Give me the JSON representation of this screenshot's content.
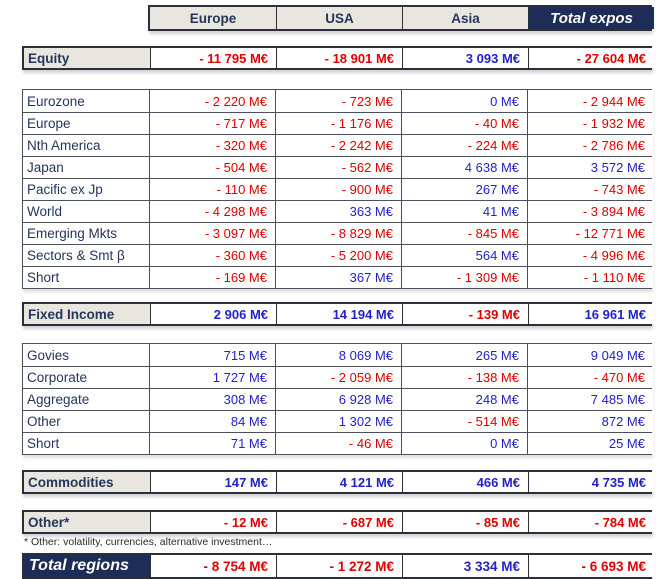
{
  "columns": [
    "Europe",
    "USA",
    "Asia",
    "Total expos"
  ],
  "sections": [
    {
      "kind": "section",
      "name": "equity",
      "label": "Equity",
      "values": [
        "- 11 795 M€",
        "- 18 901 M€",
        "3 093 M€",
        "- 27 604 M€"
      ]
    },
    {
      "kind": "subtable",
      "name": "equity-breakdown",
      "rows": [
        {
          "label": "Eurozone",
          "values": [
            "- 2 220 M€",
            "- 723 M€",
            "0 M€",
            "- 2 944 M€"
          ]
        },
        {
          "label": "Europe",
          "values": [
            "- 717 M€",
            "- 1 176 M€",
            "- 40 M€",
            "- 1 932 M€"
          ]
        },
        {
          "label": "Nth America",
          "values": [
            "- 320 M€",
            "- 2 242 M€",
            "- 224 M€",
            "- 2 786 M€"
          ]
        },
        {
          "label": "Japan",
          "values": [
            "- 504 M€",
            "- 562 M€",
            "4 638 M€",
            "3 572 M€"
          ]
        },
        {
          "label": "Pacific ex Jp",
          "values": [
            "- 110 M€",
            "- 900 M€",
            "267 M€",
            "- 743 M€"
          ]
        },
        {
          "label": "World",
          "values": [
            "- 4 298 M€",
            "363 M€",
            "41 M€",
            "- 3 894 M€"
          ]
        },
        {
          "label": "Emerging Mkts",
          "values": [
            "- 3 097 M€",
            "- 8 829 M€",
            "- 845 M€",
            "- 12 771 M€"
          ]
        },
        {
          "label": "Sectors & Smt β",
          "values": [
            "- 360 M€",
            "- 5 200 M€",
            "564 M€",
            "- 4 996 M€"
          ]
        },
        {
          "label": "Short",
          "values": [
            "- 169 M€",
            "367 M€",
            "- 1 309 M€",
            "- 1 110 M€"
          ]
        }
      ]
    },
    {
      "kind": "section",
      "name": "fixed-income",
      "label": "Fixed Income",
      "values": [
        "2 906 M€",
        "14 194 M€",
        "- 139 M€",
        "16 961 M€"
      ]
    },
    {
      "kind": "subtable",
      "name": "fixed-income-breakdown",
      "rows": [
        {
          "label": "Govies",
          "values": [
            "715 M€",
            "8 069 M€",
            "265 M€",
            "9 049 M€"
          ]
        },
        {
          "label": "Corporate",
          "values": [
            "1 727 M€",
            "- 2 059 M€",
            "- 138 M€",
            "- 470 M€"
          ]
        },
        {
          "label": "Aggregate",
          "values": [
            "308 M€",
            "6 928 M€",
            "248 M€",
            "7 485 M€"
          ]
        },
        {
          "label": "Other",
          "values": [
            "84 M€",
            "1 302 M€",
            "- 514 M€",
            "872 M€"
          ]
        },
        {
          "label": "Short",
          "values": [
            "71 M€",
            "- 46 M€",
            "0 M€",
            "25 M€"
          ]
        }
      ]
    },
    {
      "kind": "section",
      "name": "commodities",
      "label": "Commodities",
      "values": [
        "147 M€",
        "4 121 M€",
        "466 M€",
        "4 735 M€"
      ]
    },
    {
      "kind": "section",
      "name": "other",
      "label": "Other*",
      "values": [
        "- 12 M€",
        "- 687 M€",
        "- 85 M€",
        "- 784 M€"
      ]
    }
  ],
  "footnote": "* Other: volatility, currencies, alternative investment…",
  "total_row": {
    "label": "Total regions",
    "values": [
      "- 8 754 M€",
      "- 1 272 M€",
      "3 334 M€",
      "- 6 693 M€"
    ]
  },
  "colors": {
    "negative": "#E00000",
    "positive": "#2222CC",
    "navy_bg": "#1E2D58",
    "beige_bg": "#E9E6DF",
    "label_navy": "#24365C"
  }
}
